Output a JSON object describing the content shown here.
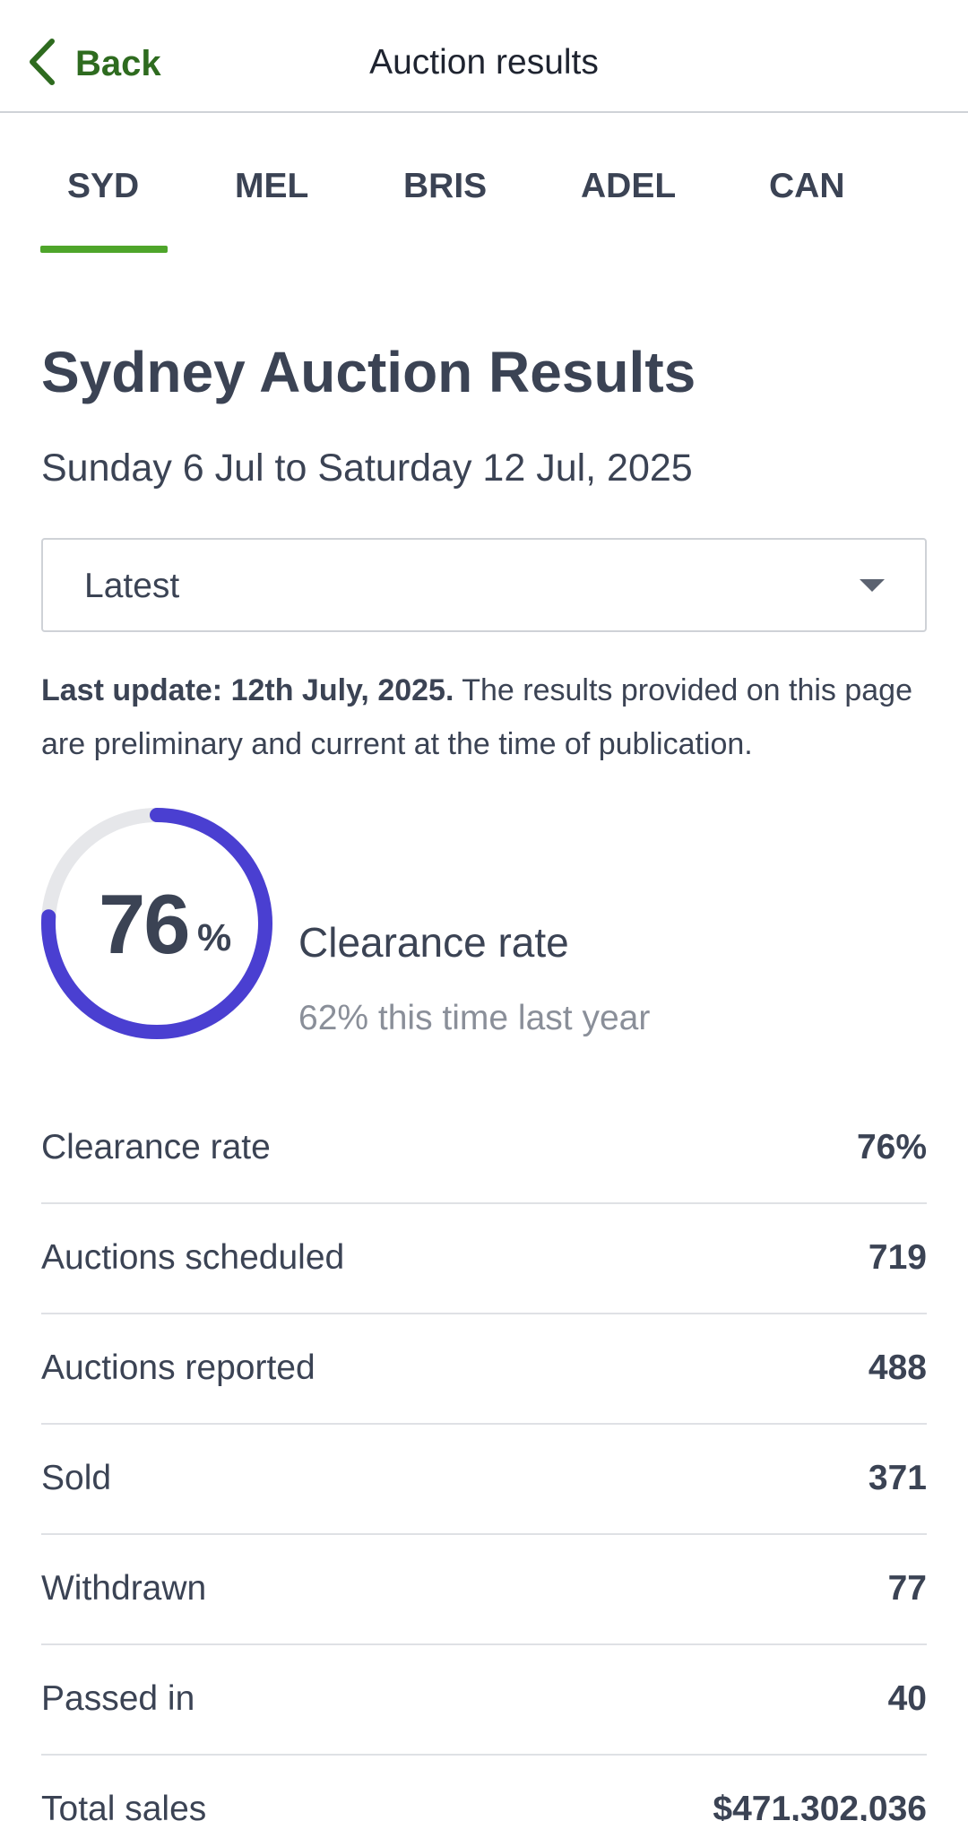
{
  "header": {
    "back_label": "Back",
    "title": "Auction results"
  },
  "tabs": [
    {
      "label": "SYD",
      "active": true
    },
    {
      "label": "MEL",
      "active": false
    },
    {
      "label": "BRIS",
      "active": false
    },
    {
      "label": "ADEL",
      "active": false
    },
    {
      "label": "CAN",
      "active": false
    }
  ],
  "page": {
    "title": "Sydney Auction Results",
    "date_range": "Sunday 6 Jul to Saturday 12 Jul, 2025"
  },
  "period_select": {
    "value": "Latest"
  },
  "update_note": {
    "bold": "Last update: 12th July, 2025.",
    "text": " The results provided on this page are preliminary and current at the time of publication."
  },
  "clearance_gauge": {
    "value": "76",
    "unit": "%",
    "fraction": 0.76,
    "title": "Clearance rate",
    "comparison": "62% this time last year",
    "colors": {
      "progress": "#4a3fd1",
      "track": "#e6e7ea"
    }
  },
  "stats": [
    {
      "label": "Clearance rate",
      "value": "76%"
    },
    {
      "label": "Auctions scheduled",
      "value": "719"
    },
    {
      "label": "Auctions reported",
      "value": "488"
    },
    {
      "label": "Sold",
      "value": "371"
    },
    {
      "label": "Withdrawn",
      "value": "77"
    },
    {
      "label": "Passed in",
      "value": "40"
    },
    {
      "label": "Total sales",
      "value": "$471,302,036"
    }
  ],
  "colors": {
    "accent": "#4ea52a",
    "back_link": "#2e6b1f",
    "text": "#3b4354"
  }
}
